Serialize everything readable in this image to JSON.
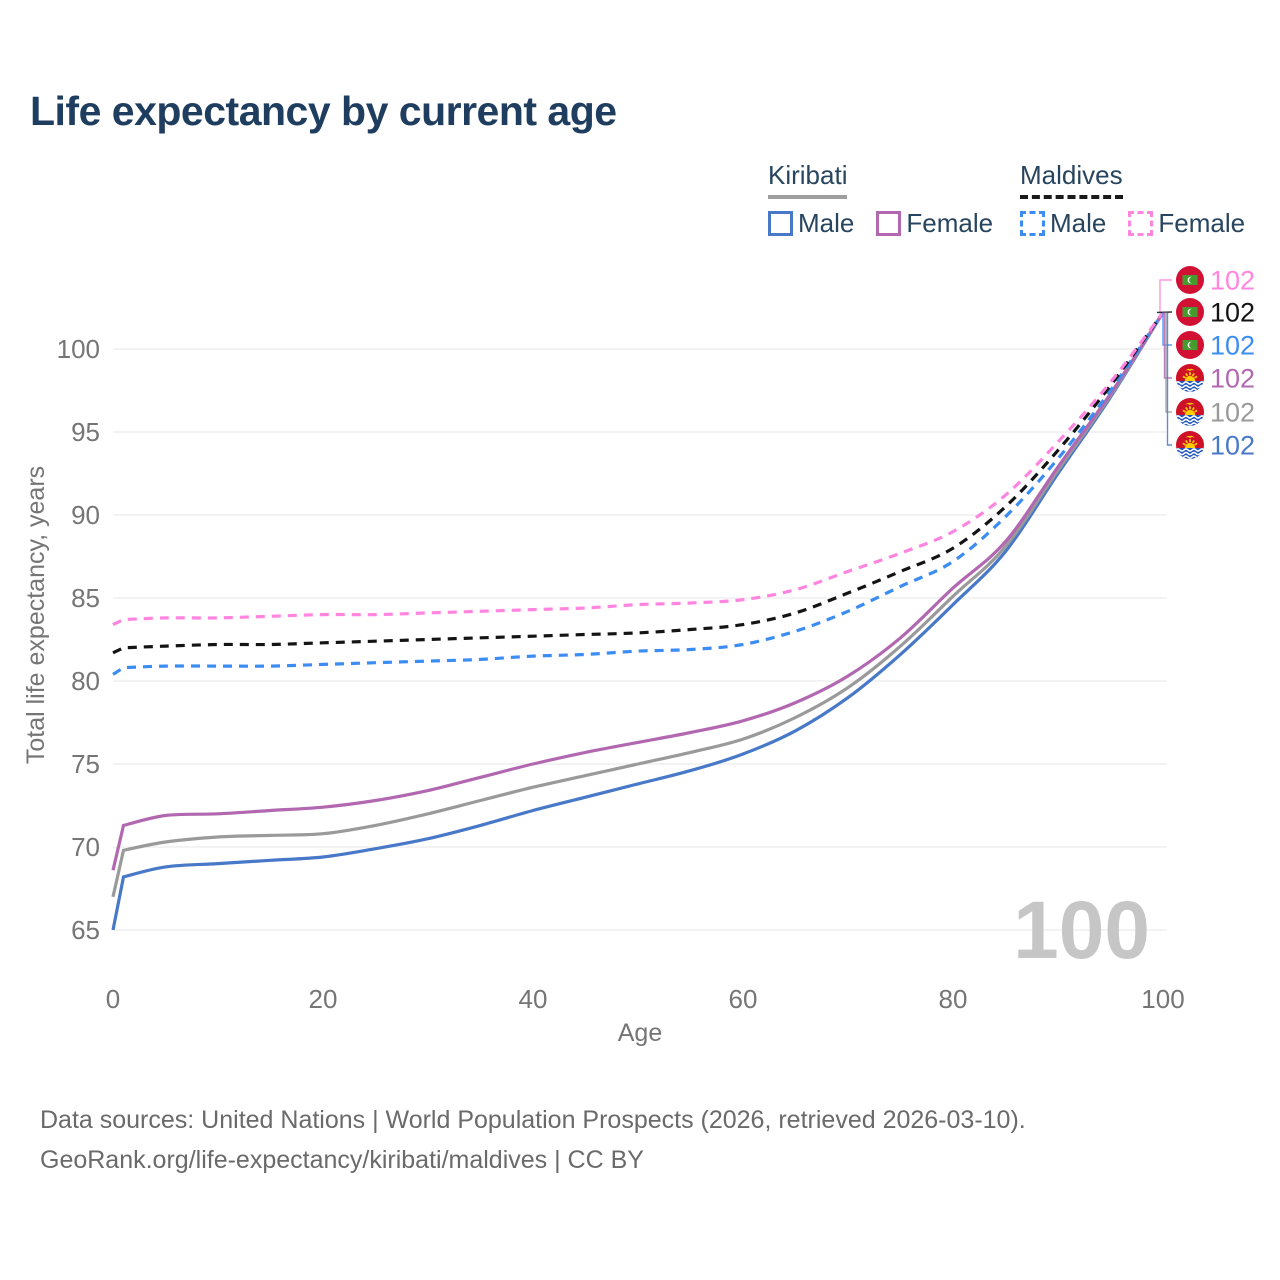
{
  "title": "Life expectancy by current age",
  "watermark": "100",
  "legend": {
    "groups": [
      {
        "country": "Kiribati",
        "line_style": "solid",
        "underline_color": "#9e9e9e",
        "items": [
          {
            "label": "Male",
            "color": "#4878c8"
          },
          {
            "label": "Female",
            "color": "#b268b0"
          }
        ]
      },
      {
        "country": "Maldives",
        "line_style": "dashed",
        "underline_color": "#1a1a1a",
        "items": [
          {
            "label": "Male",
            "color": "#3c8df2"
          },
          {
            "label": "Female",
            "color": "#ff85e0"
          }
        ]
      }
    ]
  },
  "footer": {
    "line1": "Data sources: United Nations | World Population Prospects (2026, retrieved 2026-03-10).",
    "line2": "GeoRank.org/life-expectancy/kiribati/maldives | CC BY"
  },
  "colors": {
    "title": "#1e3d5f",
    "legend_text": "#28455f",
    "axis_text": "#757575",
    "gridline": "#ececec",
    "watermark": "#c6c6c6",
    "footer_text": "#6a6a6a",
    "kiribati_male": "#4878c8",
    "kiribati_all": "#9a9a9a",
    "kiribati_female": "#b268b0",
    "maldives_male": "#3c8df2",
    "maldives_all": "#141414",
    "maldives_female": "#ff85e0"
  },
  "chart_data": {
    "type": "line",
    "title": "Life expectancy by current age",
    "xlabel": "Age",
    "ylabel": "Total life expectancy, years",
    "xlim": [
      0,
      100
    ],
    "ylim": [
      63.5,
      103.5
    ],
    "xticks": [
      0,
      20,
      40,
      60,
      80,
      100
    ],
    "yticks": [
      65,
      70,
      75,
      80,
      85,
      90,
      95,
      100
    ],
    "grid": "horizontal",
    "legend_position": "top-right",
    "x": [
      0,
      1,
      5,
      10,
      15,
      20,
      25,
      30,
      35,
      40,
      45,
      50,
      55,
      60,
      65,
      70,
      75,
      80,
      85,
      90,
      95,
      100
    ],
    "series": [
      {
        "name": "Kiribati Male",
        "country": "Kiribati",
        "sex": "male",
        "style": "solid",
        "color": "#4878c8",
        "end_label": "102",
        "values": [
          65.0,
          68.2,
          68.8,
          69.0,
          69.2,
          69.4,
          69.9,
          70.5,
          71.3,
          72.2,
          73.0,
          73.8,
          74.6,
          75.6,
          77.0,
          79.0,
          81.6,
          84.6,
          87.8,
          92.5,
          97.1,
          102.2
        ]
      },
      {
        "name": "Kiribati",
        "country": "Kiribati",
        "sex": "all",
        "style": "solid",
        "color": "#9a9a9a",
        "end_label": "102",
        "values": [
          67.0,
          69.8,
          70.3,
          70.6,
          70.7,
          70.8,
          71.3,
          72.0,
          72.8,
          73.6,
          74.3,
          75.0,
          75.7,
          76.5,
          77.8,
          79.6,
          82.1,
          85.1,
          88.1,
          92.7,
          97.2,
          102.2
        ]
      },
      {
        "name": "Kiribati Female",
        "country": "Kiribati",
        "sex": "female",
        "style": "solid",
        "color": "#b268b0",
        "end_label": "102",
        "values": [
          68.6,
          71.3,
          71.9,
          72.0,
          72.2,
          72.4,
          72.8,
          73.4,
          74.2,
          75.0,
          75.7,
          76.3,
          76.9,
          77.6,
          78.7,
          80.3,
          82.6,
          85.6,
          88.4,
          92.9,
          97.3,
          102.2
        ]
      },
      {
        "name": "Maldives Male",
        "country": "Maldives",
        "sex": "male",
        "style": "dashed",
        "color": "#3c8df2",
        "end_label": "102",
        "values": [
          80.4,
          80.8,
          80.9,
          80.9,
          80.9,
          81.0,
          81.1,
          81.2,
          81.3,
          81.5,
          81.6,
          81.8,
          81.9,
          82.2,
          83.0,
          84.2,
          85.7,
          87.2,
          89.9,
          93.4,
          97.5,
          102.2
        ]
      },
      {
        "name": "Maldives",
        "country": "Maldives",
        "sex": "all",
        "style": "dashed",
        "color": "#141414",
        "end_label": "102",
        "values": [
          81.7,
          82.0,
          82.1,
          82.2,
          82.2,
          82.3,
          82.4,
          82.5,
          82.6,
          82.7,
          82.8,
          82.9,
          83.1,
          83.4,
          84.1,
          85.3,
          86.6,
          88.0,
          90.5,
          93.9,
          97.8,
          102.2
        ]
      },
      {
        "name": "Maldives Female",
        "country": "Maldives",
        "sex": "female",
        "style": "dashed",
        "color": "#ff85e0",
        "end_label": "102",
        "values": [
          83.4,
          83.7,
          83.8,
          83.8,
          83.9,
          84.0,
          84.0,
          84.1,
          84.2,
          84.3,
          84.4,
          84.6,
          84.7,
          84.9,
          85.5,
          86.6,
          87.7,
          89.0,
          91.2,
          94.4,
          98.0,
          102.2
        ]
      }
    ]
  },
  "end_labels": [
    {
      "label": "102",
      "series": "Maldives Female",
      "flag": "maldives",
      "color": "#ff85e0"
    },
    {
      "label": "102",
      "series": "Maldives",
      "flag": "maldives",
      "color": "#141414"
    },
    {
      "label": "102",
      "series": "Maldives Male",
      "flag": "maldives",
      "color": "#3c8df2"
    },
    {
      "label": "102",
      "series": "Kiribati Female",
      "flag": "kiribati",
      "color": "#b268b0"
    },
    {
      "label": "102",
      "series": "Kiribati",
      "flag": "kiribati",
      "color": "#9a9a9a"
    },
    {
      "label": "102",
      "series": "Kiribati Male",
      "flag": "kiribati",
      "color": "#4878c8"
    }
  ]
}
